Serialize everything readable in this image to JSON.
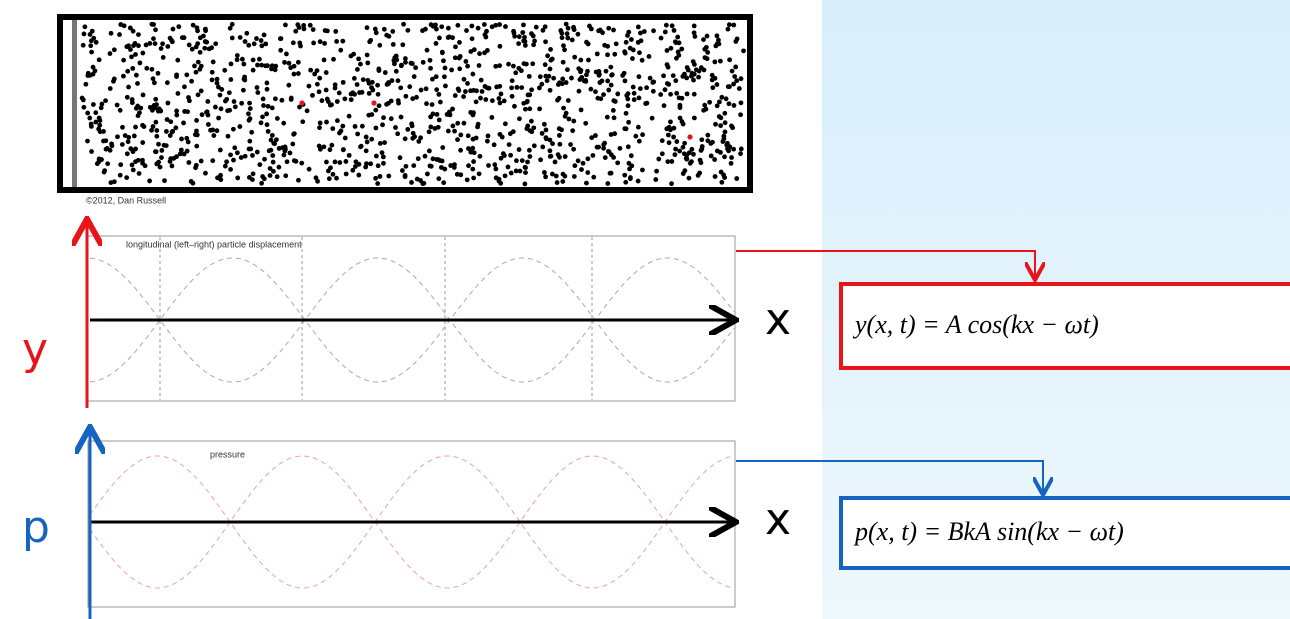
{
  "figure": {
    "credit": "©2012, Dan Russell",
    "displacement_panel": {
      "label": "longitudinal (left–right) particle displacement",
      "vertical_axis": "y",
      "horizontal_axis": "x",
      "equation": "y(x, t) = A cos(kx − ωt)"
    },
    "pressure_panel": {
      "label": "pressure",
      "vertical_axis": "p",
      "horizontal_axis": "x",
      "equation": "p(x, t) = BkA sin(kx − ωt)"
    }
  }
}
